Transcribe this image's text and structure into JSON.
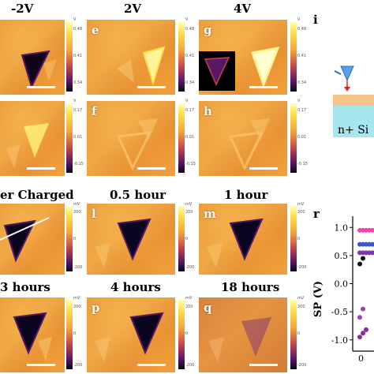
{
  "row_titles": {
    "top": [
      "-2V",
      "2V",
      "4V"
    ],
    "middle": [
      "er Charged",
      "0.5 hour",
      "1 hour"
    ],
    "bottom": [
      "3 hours",
      "4 hours",
      "18 hours"
    ]
  },
  "panel_letters": {
    "e": "e",
    "g": "g",
    "f": "f",
    "h": "h",
    "l": "l",
    "m": "m",
    "p": "p",
    "q": "q"
  },
  "side_letters": {
    "i": "i",
    "r": "r"
  },
  "device_label": "n+ Si",
  "colorbar": {
    "unit_v": "V",
    "unit_mv": "mV",
    "top_row_ticks": [
      "0.48",
      "0.41",
      "0.34"
    ],
    "second_row_ticks": [
      "0.17",
      "0.01",
      "-0.15"
    ],
    "mv_ticks": [
      "200",
      "0",
      "-200"
    ]
  },
  "chart_data": {
    "type": "scatter",
    "ylabel": "SP (V)",
    "xlabel": "",
    "yticks": [
      "1.0",
      "0.5",
      "0.0",
      "-0.5",
      "-1.0"
    ],
    "xticks": [
      "0"
    ],
    "ylim": [
      -1.2,
      1.2
    ],
    "series": [
      {
        "color": "#ff3fae",
        "values": [
          0.95,
          0.95,
          0.95,
          0.95,
          0.95
        ]
      },
      {
        "color": "#3a56e0",
        "values": [
          0.7,
          0.7,
          0.7,
          0.7,
          0.7
        ]
      },
      {
        "color": "#7a3aa8",
        "values": [
          0.55,
          0.55,
          0.55,
          0.55,
          0.55
        ]
      },
      {
        "color": "#111111",
        "values": [
          0.35,
          0.45
        ]
      },
      {
        "color": "#9b3fb5",
        "values": [
          -0.6,
          -0.45
        ]
      },
      {
        "color": "#8a2aa0",
        "values": [
          -0.95,
          -0.88,
          -0.82
        ]
      }
    ]
  },
  "colors": {
    "panel_orange": "#e89a3a",
    "bright_triangle": "#fff8a0",
    "dark_triangle": "#120418",
    "pink_series": "#ff3fae",
    "blue_series": "#3a56e0"
  }
}
